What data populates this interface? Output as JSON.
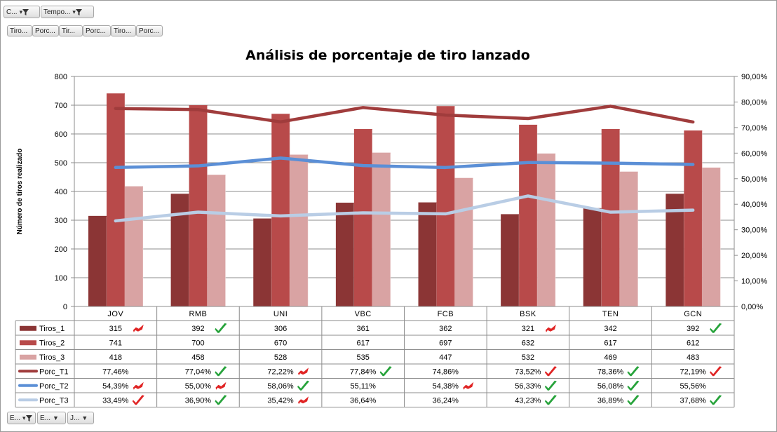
{
  "filter_buttons": {
    "top": [
      {
        "label": "C...",
        "icon": "filter-icon"
      },
      {
        "label": "Tempo...",
        "icon": "filter-icon"
      }
    ],
    "fields": [
      "Tiro...",
      "Porc...",
      "Tir...",
      "Porc...",
      "Tiro...",
      "Porc..."
    ],
    "bottom": [
      {
        "label": "E...",
        "icon": "filter-icon"
      },
      {
        "label": "E...",
        "icon": "dropdown-icon"
      },
      {
        "label": "J...",
        "icon": "dropdown-icon"
      }
    ]
  },
  "chart_data": {
    "type": "bar",
    "title": "Análisis de porcentaje de tiro lanzado",
    "ylabel": "Número de tiros realizado",
    "ylim": [
      0,
      800
    ],
    "y_ticks": [
      "0",
      "100",
      "200",
      "300",
      "400",
      "500",
      "600",
      "700",
      "800"
    ],
    "y2lim": [
      0,
      0.9
    ],
    "y2_ticks": [
      "0,00%",
      "10,00%",
      "20,00%",
      "30,00%",
      "40,00%",
      "50,00%",
      "60,00%",
      "70,00%",
      "80,00%",
      "90,00%"
    ],
    "categories": [
      "JOV",
      "RMB",
      "UNI",
      "VBC",
      "FCB",
      "BSK",
      "TEN",
      "GCN"
    ],
    "grid": true,
    "legend": "data-table",
    "bar_series": [
      {
        "name": "Tiros_1",
        "color": "#8b3535",
        "values": [
          315,
          392,
          306,
          361,
          362,
          321,
          342,
          392
        ],
        "labels": [
          "315",
          "392",
          "306",
          "361",
          "362",
          "321",
          "342",
          "392"
        ],
        "icons": [
          "red-flag",
          "green-check",
          "",
          "",
          "",
          "red-flag",
          "",
          "green-check"
        ]
      },
      {
        "name": "Tiros_2",
        "color": "#b84a4a",
        "values": [
          741,
          700,
          670,
          617,
          697,
          632,
          617,
          612
        ],
        "labels": [
          "741",
          "700",
          "670",
          "617",
          "697",
          "632",
          "617",
          "612"
        ],
        "icons": [
          "",
          "",
          "",
          "",
          "",
          "",
          "",
          ""
        ]
      },
      {
        "name": "Tiros_3",
        "color": "#d9a3a3",
        "values": [
          418,
          458,
          528,
          535,
          447,
          532,
          469,
          483
        ],
        "labels": [
          "418",
          "458",
          "528",
          "535",
          "447",
          "532",
          "469",
          "483"
        ],
        "icons": [
          "",
          "",
          "",
          "",
          "",
          "",
          "",
          ""
        ]
      }
    ],
    "line_series": [
      {
        "name": "Porc_T1",
        "color": "#a03c3c",
        "values": [
          0.7746,
          0.7704,
          0.7222,
          0.7784,
          0.7486,
          0.7352,
          0.7836,
          0.7219
        ],
        "labels": [
          "77,46%",
          "77,04%",
          "72,22%",
          "77,84%",
          "74,86%",
          "73,52%",
          "78,36%",
          "72,19%"
        ],
        "icons": [
          "",
          "green-check",
          "red-flag",
          "green-check",
          "",
          "red-check",
          "green-check",
          "red-check"
        ]
      },
      {
        "name": "Porc_T2",
        "color": "#5b8fd6",
        "values": [
          0.5439,
          0.55,
          0.5806,
          0.5511,
          0.5438,
          0.5633,
          0.5608,
          0.5556
        ],
        "labels": [
          "54,39%",
          "55,00%",
          "58,06%",
          "55,11%",
          "54,38%",
          "56,33%",
          "56,08%",
          "55,56%"
        ],
        "icons": [
          "red-flag",
          "red-flag",
          "green-check",
          "",
          "red-flag",
          "green-check",
          "green-check",
          ""
        ]
      },
      {
        "name": "Porc_T3",
        "color": "#b9cde5",
        "values": [
          0.3349,
          0.369,
          0.3542,
          0.3664,
          0.3624,
          0.4323,
          0.3689,
          0.3768
        ],
        "labels": [
          "33,49%",
          "36,90%",
          "35,42%",
          "36,64%",
          "36,24%",
          "43,23%",
          "36,89%",
          "37,68%"
        ],
        "icons": [
          "red-check",
          "green-check",
          "red-flag",
          "",
          "",
          "green-check",
          "green-check",
          "green-check"
        ]
      }
    ]
  }
}
